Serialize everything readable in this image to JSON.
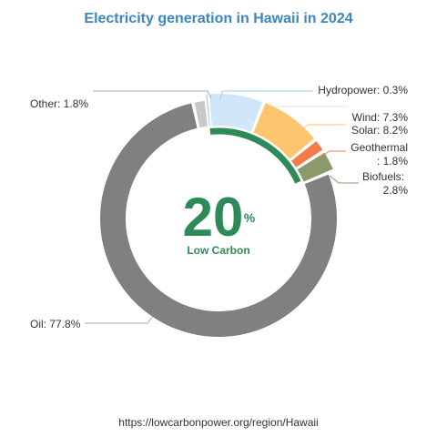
{
  "chart_data": {
    "type": "pie",
    "title": "Electricity generation in Hawaii in 2024",
    "series": [
      {
        "name": "Hydropower",
        "value": 0.3,
        "label": "Hydropower: 0.3%",
        "color": "#a6cee3"
      },
      {
        "name": "Wind",
        "value": 7.3,
        "label": "Wind: 7.3%",
        "color": "#d1e6f7"
      },
      {
        "name": "Solar",
        "value": 8.2,
        "label": "Solar: 8.2%",
        "color": "#ffc56e"
      },
      {
        "name": "Geothermal",
        "value": 1.8,
        "label_lines": [
          "Geothermal",
          ": 1.8%"
        ],
        "color": "#f47b4a"
      },
      {
        "name": "Biofuels",
        "value": 2.8,
        "label_lines": [
          "Biofuels:",
          "2.8%"
        ],
        "color": "#8b9a6b"
      },
      {
        "name": "Oil",
        "value": 77.8,
        "label": "Oil: 77.8%",
        "color": "#808080"
      },
      {
        "name": "Other",
        "value": 1.8,
        "label": "Other: 1.8%",
        "color": "#c8c8c8"
      }
    ],
    "low_carbon": {
      "value": 20,
      "unit": "%",
      "label": "Low Carbon"
    }
  },
  "source": "https://lowcarbonpower.org/region/Hawaii",
  "colors": {
    "title": "#3a87c0",
    "low_carbon": "#2e8b57",
    "leader": "#aaaaaa"
  }
}
